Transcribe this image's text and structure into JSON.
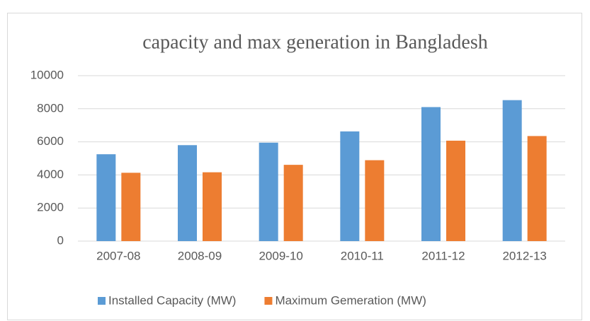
{
  "chart_data": {
    "type": "bar",
    "title": "capacity and max generation in Bangladesh",
    "categories": [
      "2007-08",
      "2008-09",
      "2009-10",
      "2010-11",
      "2011-12",
      "2012-13"
    ],
    "series": [
      {
        "name": "Installed Capacity (MW)",
        "color": "#5b9bd5",
        "values": [
          5250,
          5800,
          5950,
          6630,
          8100,
          8520
        ]
      },
      {
        "name": "Maximum Gemeration (MW)",
        "color": "#ed7d31",
        "values": [
          4130,
          4160,
          4610,
          4890,
          6070,
          6350
        ]
      }
    ],
    "ylim": [
      0,
      10000
    ],
    "yticks": [
      0,
      2000,
      4000,
      6000,
      8000,
      10000
    ],
    "grid": true,
    "legend": "bottom"
  }
}
